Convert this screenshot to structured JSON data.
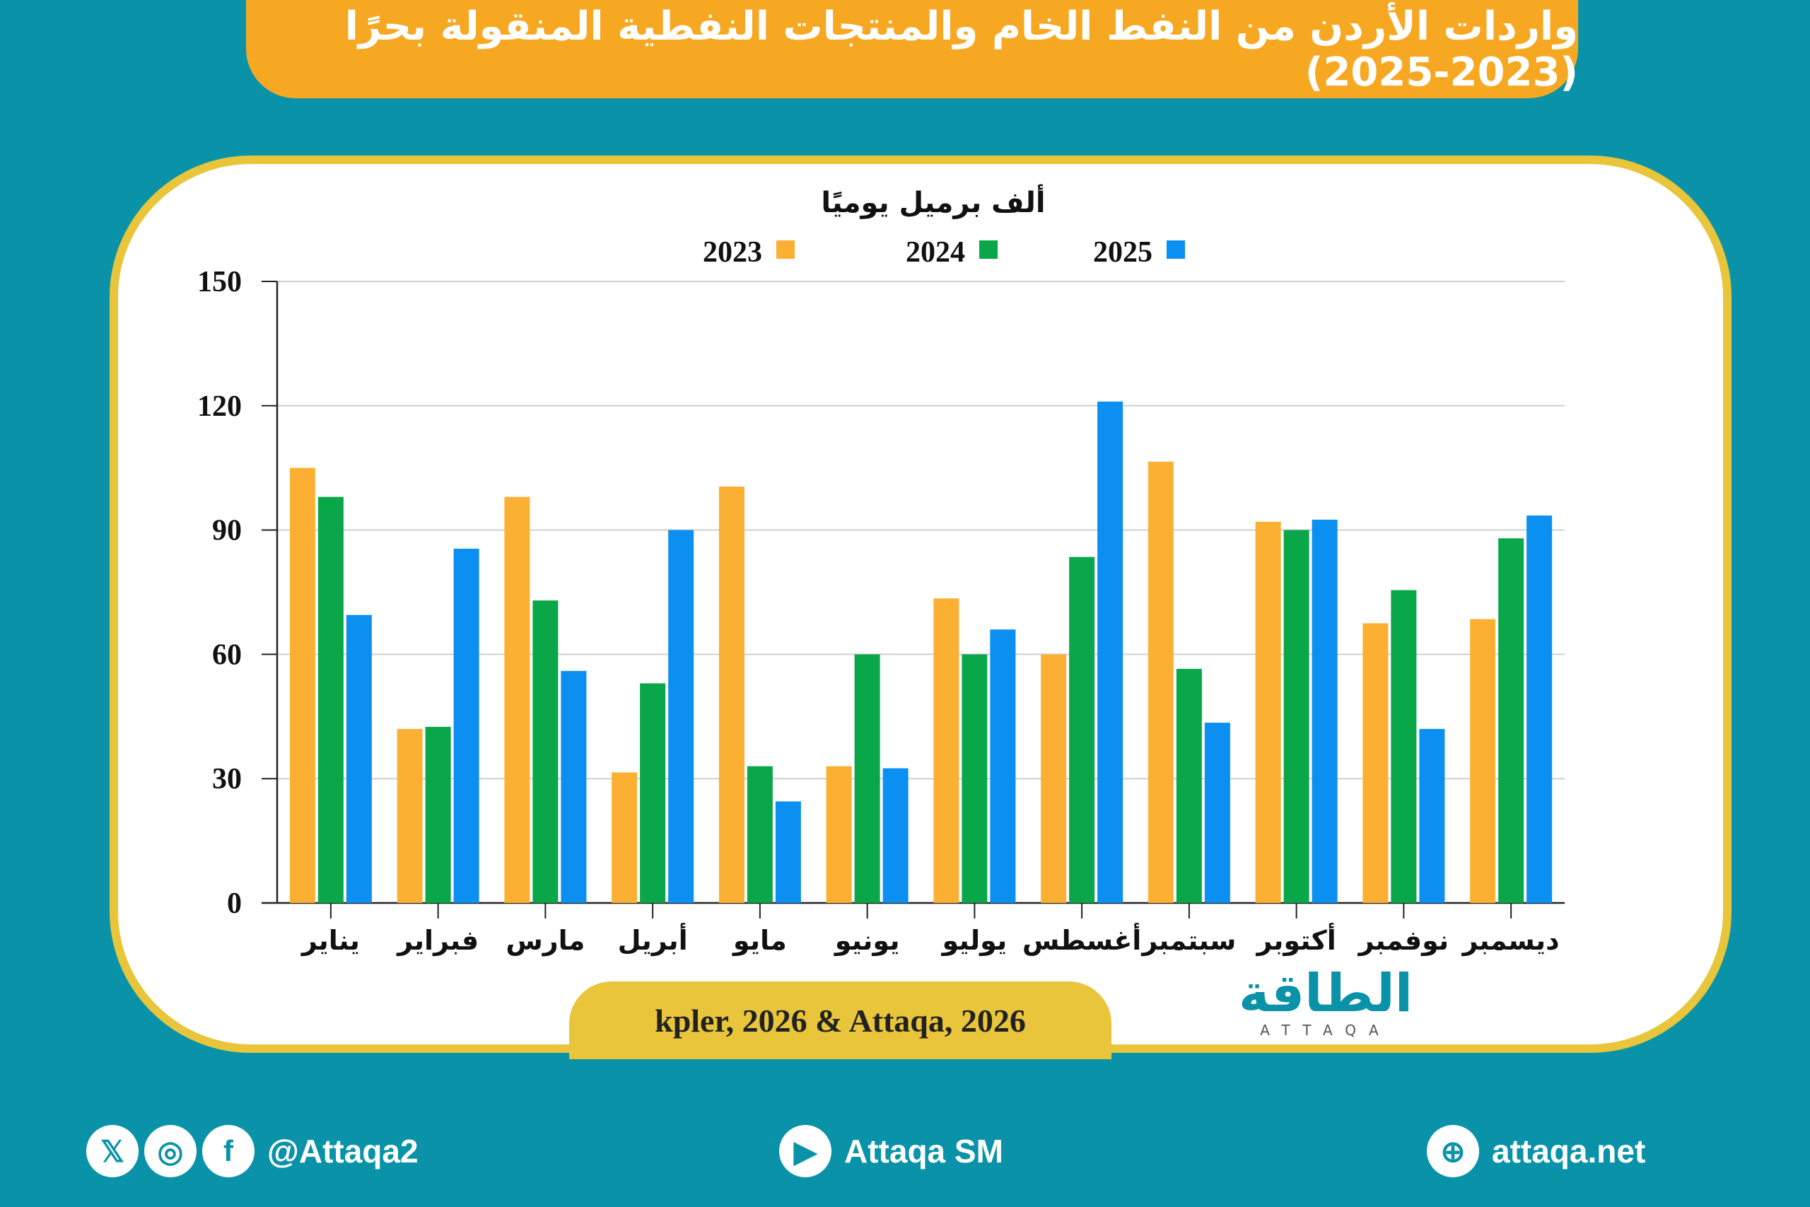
{
  "title": "واردات الأردن من النفط الخام والمنتجات النفطية المنقولة بحرًا (2023-2025)",
  "source": "kpler, 2026 & Attaqa, 2026",
  "logo": {
    "arabic": "الطاقة",
    "latin": "ATTAQA"
  },
  "footer": {
    "social_handle": "@Attaqa2",
    "youtube": "Attaqa SM",
    "website": "attaqa.net",
    "icons": [
      "x-icon",
      "instagram-icon",
      "facebook-icon",
      "youtube-icon",
      "globe-icon"
    ]
  },
  "colors": {
    "background": "#0a93a8",
    "banner": "#f7a823",
    "border": "#e8c53a"
  },
  "chart_data": {
    "type": "bar",
    "ylabel": "ألف برميل يوميًا",
    "ylim": [
      0,
      150
    ],
    "yticks": [
      0,
      30,
      60,
      90,
      120,
      150
    ],
    "grid": true,
    "legend_placement": "top",
    "categories": [
      "يناير",
      "فبراير",
      "مارس",
      "أبريل",
      "مايو",
      "يونيو",
      "يوليو",
      "أغسطس",
      "سبتمبر",
      "أكتوبر",
      "نوفمبر",
      "ديسمبر"
    ],
    "series": [
      {
        "name": "2023",
        "color": "#fbb034",
        "values": [
          105,
          42,
          98,
          31.5,
          100.5,
          33,
          73.5,
          60,
          106.5,
          92,
          67.5,
          68.5
        ]
      },
      {
        "name": "2024",
        "color": "#0aa64a",
        "values": [
          98,
          42.5,
          73,
          53,
          33,
          60,
          60,
          83.5,
          56.5,
          90,
          75.5,
          88
        ]
      },
      {
        "name": "2025",
        "color": "#0b8ff0",
        "values": [
          69.5,
          85.5,
          56,
          90,
          24.5,
          32.5,
          66,
          121,
          43.5,
          92.5,
          42,
          93.5
        ]
      }
    ]
  }
}
